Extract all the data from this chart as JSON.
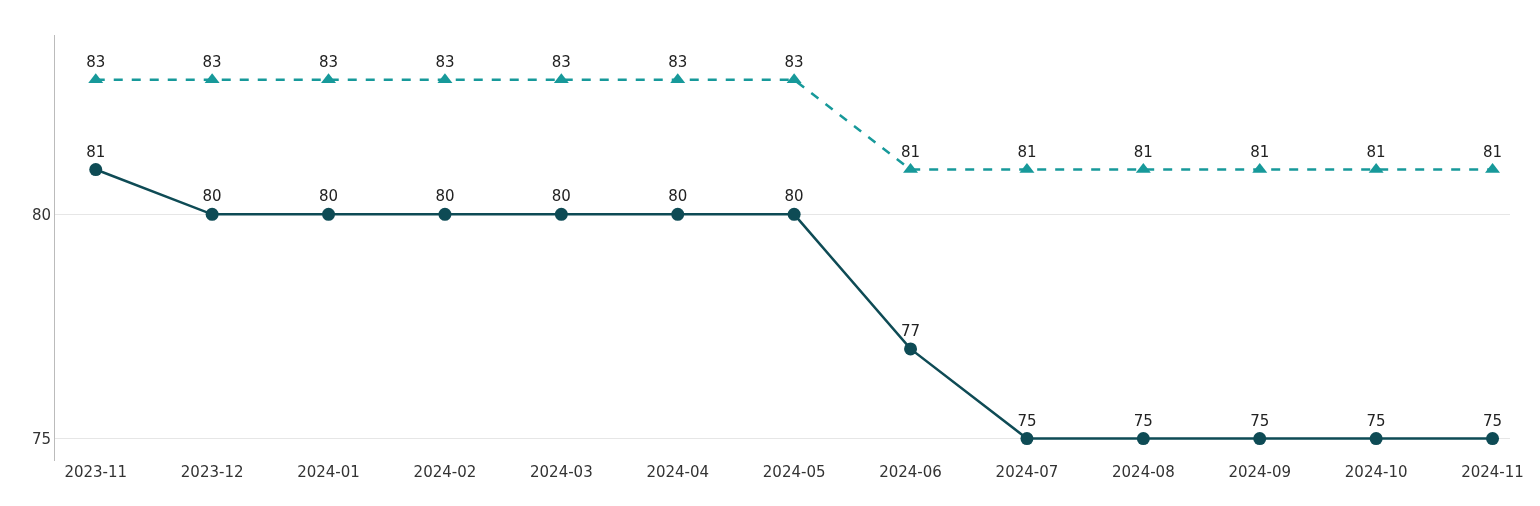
{
  "chart_data": {
    "type": "line",
    "categories": [
      "2023-11",
      "2023-12",
      "2024-01",
      "2024-02",
      "2024-03",
      "2024-04",
      "2024-05",
      "2024-06",
      "2024-07",
      "2024-08",
      "2024-09",
      "2024-10",
      "2024-11"
    ],
    "series": [
      {
        "color": "#0e4b55",
        "values": [
          81,
          80,
          80,
          80,
          80,
          80,
          80,
          77,
          75,
          75,
          75,
          75,
          75
        ],
        "marker": "circle",
        "line_style": "solid"
      },
      {
        "color": "#17999a",
        "values": [
          83,
          83,
          83,
          83,
          83,
          83,
          83,
          81,
          81,
          81,
          81,
          81,
          81
        ],
        "marker": "triangle",
        "line_style": "dashed"
      }
    ],
    "ylim": [
      74.5,
      84
    ],
    "yticks": [
      75,
      80
    ],
    "grid": "y",
    "legend": false,
    "data_labels": true
  }
}
